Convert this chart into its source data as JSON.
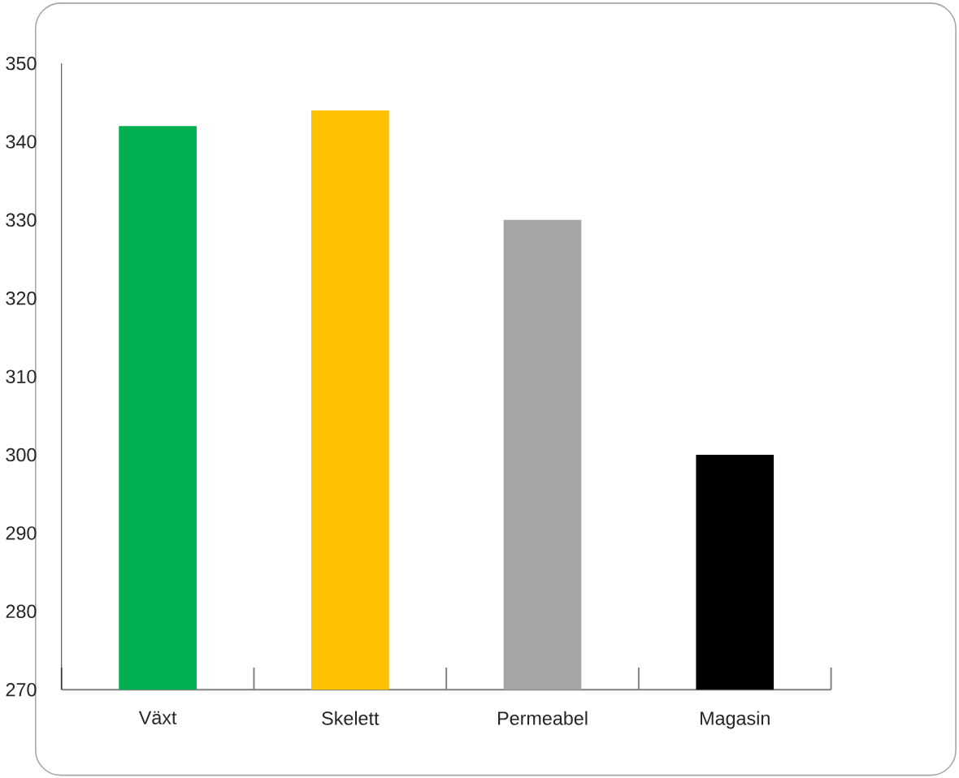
{
  "chart_data": {
    "type": "bar",
    "categories": [
      "Växt",
      "Skelett",
      "Permeabel",
      "Magasin"
    ],
    "values": [
      342,
      344,
      330,
      300
    ],
    "colors": [
      "#00b050",
      "#ffc000",
      "#a5a5a5",
      "#000000"
    ],
    "ylim": [
      270,
      350
    ],
    "yticks": [
      270,
      280,
      290,
      300,
      310,
      320,
      330,
      340,
      350
    ]
  }
}
